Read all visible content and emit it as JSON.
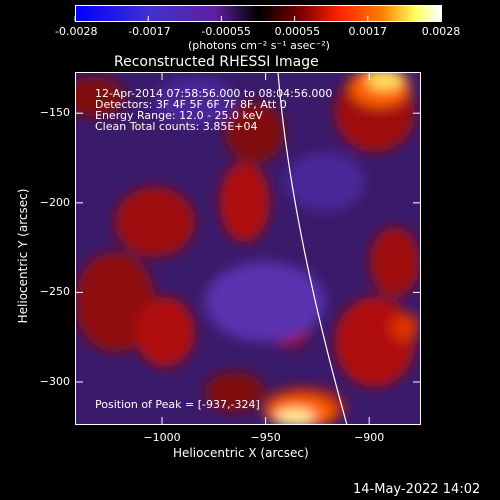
{
  "colorbar": {
    "tick_labels": [
      "-0.0028",
      "-0.0017",
      "-0.00055",
      "0.00055",
      "0.0017",
      "0.0028"
    ],
    "units": "(photons cm⁻² s⁻¹ asec⁻²)"
  },
  "plot": {
    "title": "Reconstructed RHESSI Image",
    "info_lines": [
      "12-Apr-2014 07:58:56.000 to 08:04:56.000",
      "Detectors: 3F 4F 5F 6F 7F 8F, Att 0",
      "Energy Range: 12.0 - 25.0 keV",
      "Clean     Total counts: 3.85E+04"
    ],
    "peak_label": "Position of Peak = [-937,-324]",
    "xlabel": "Heliocentric X (arcsec)",
    "ylabel": "Heliocentric Y (arcsec)",
    "x_ticks": [
      {
        "v": -1000,
        "label": "−1000"
      },
      {
        "v": -950,
        "label": "−950"
      },
      {
        "v": -900,
        "label": "−900"
      }
    ],
    "y_ticks": [
      {
        "v": -150,
        "label": "−150"
      },
      {
        "v": -200,
        "label": "−200"
      },
      {
        "v": -250,
        "label": "−250"
      },
      {
        "v": -300,
        "label": "−300"
      }
    ],
    "xlim": [
      -1042,
      -875
    ],
    "ylim": [
      -324,
      -127
    ]
  },
  "timestamp": "14-May-2022 14:02",
  "colors": {
    "background": "#000000",
    "text": "#ffffff",
    "cmap": [
      "#0000ff",
      "#4030d0",
      "#6020a0",
      "#000000",
      "#800000",
      "#ff2000",
      "#ff8000",
      "#ffff60",
      "#ffffff"
    ]
  }
}
